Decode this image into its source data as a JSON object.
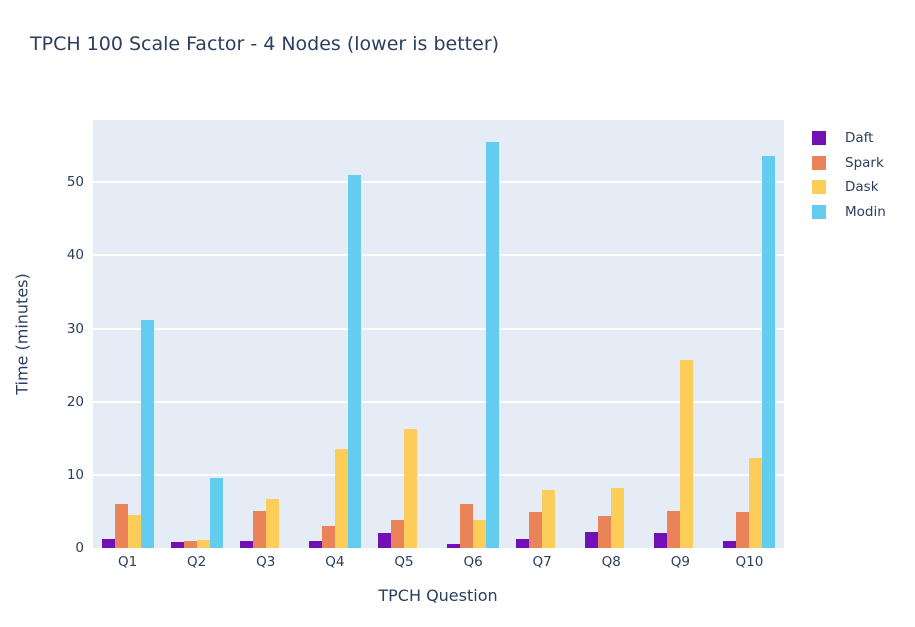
{
  "title": "TPCH 100 Scale Factor - 4 Nodes (lower is better)",
  "colors": {
    "text": "#2a3f5f",
    "plot_background": "#e5ecf6",
    "gridline": "#ffffff",
    "daft": "#7110b5",
    "spark": "#ea8358",
    "dask": "#fdcd5a",
    "modin": "#63ccef"
  },
  "chart_data": {
    "type": "bar",
    "title": "TPCH 100 Scale Factor - 4 Nodes (lower is better)",
    "xlabel": "TPCH Question",
    "ylabel": "Time (minutes)",
    "categories": [
      "Q1",
      "Q2",
      "Q3",
      "Q4",
      "Q5",
      "Q6",
      "Q7",
      "Q8",
      "Q9",
      "Q10"
    ],
    "series": [
      {
        "name": "Daft",
        "color": "#7110b5",
        "values": [
          1.2,
          0.8,
          1.0,
          1.0,
          2.0,
          0.6,
          1.2,
          2.2,
          2.1,
          1.0
        ]
      },
      {
        "name": "Spark",
        "color": "#ea8358",
        "values": [
          6.0,
          0.9,
          5.0,
          3.0,
          3.8,
          6.0,
          4.9,
          4.4,
          5.0,
          4.9
        ]
      },
      {
        "name": "Dask",
        "color": "#fdcd5a",
        "values": [
          4.5,
          1.1,
          6.7,
          13.5,
          16.2,
          3.8,
          7.9,
          8.2,
          25.7,
          12.3
        ]
      },
      {
        "name": "Modin",
        "color": "#63ccef",
        "values": [
          31.1,
          9.6,
          null,
          51.0,
          null,
          55.5,
          null,
          null,
          null,
          53.6
        ]
      }
    ],
    "ylim": [
      0,
      58.5
    ],
    "yticks": [
      0,
      10,
      20,
      30,
      40,
      50
    ],
    "grid": true,
    "legend_position": "right"
  }
}
